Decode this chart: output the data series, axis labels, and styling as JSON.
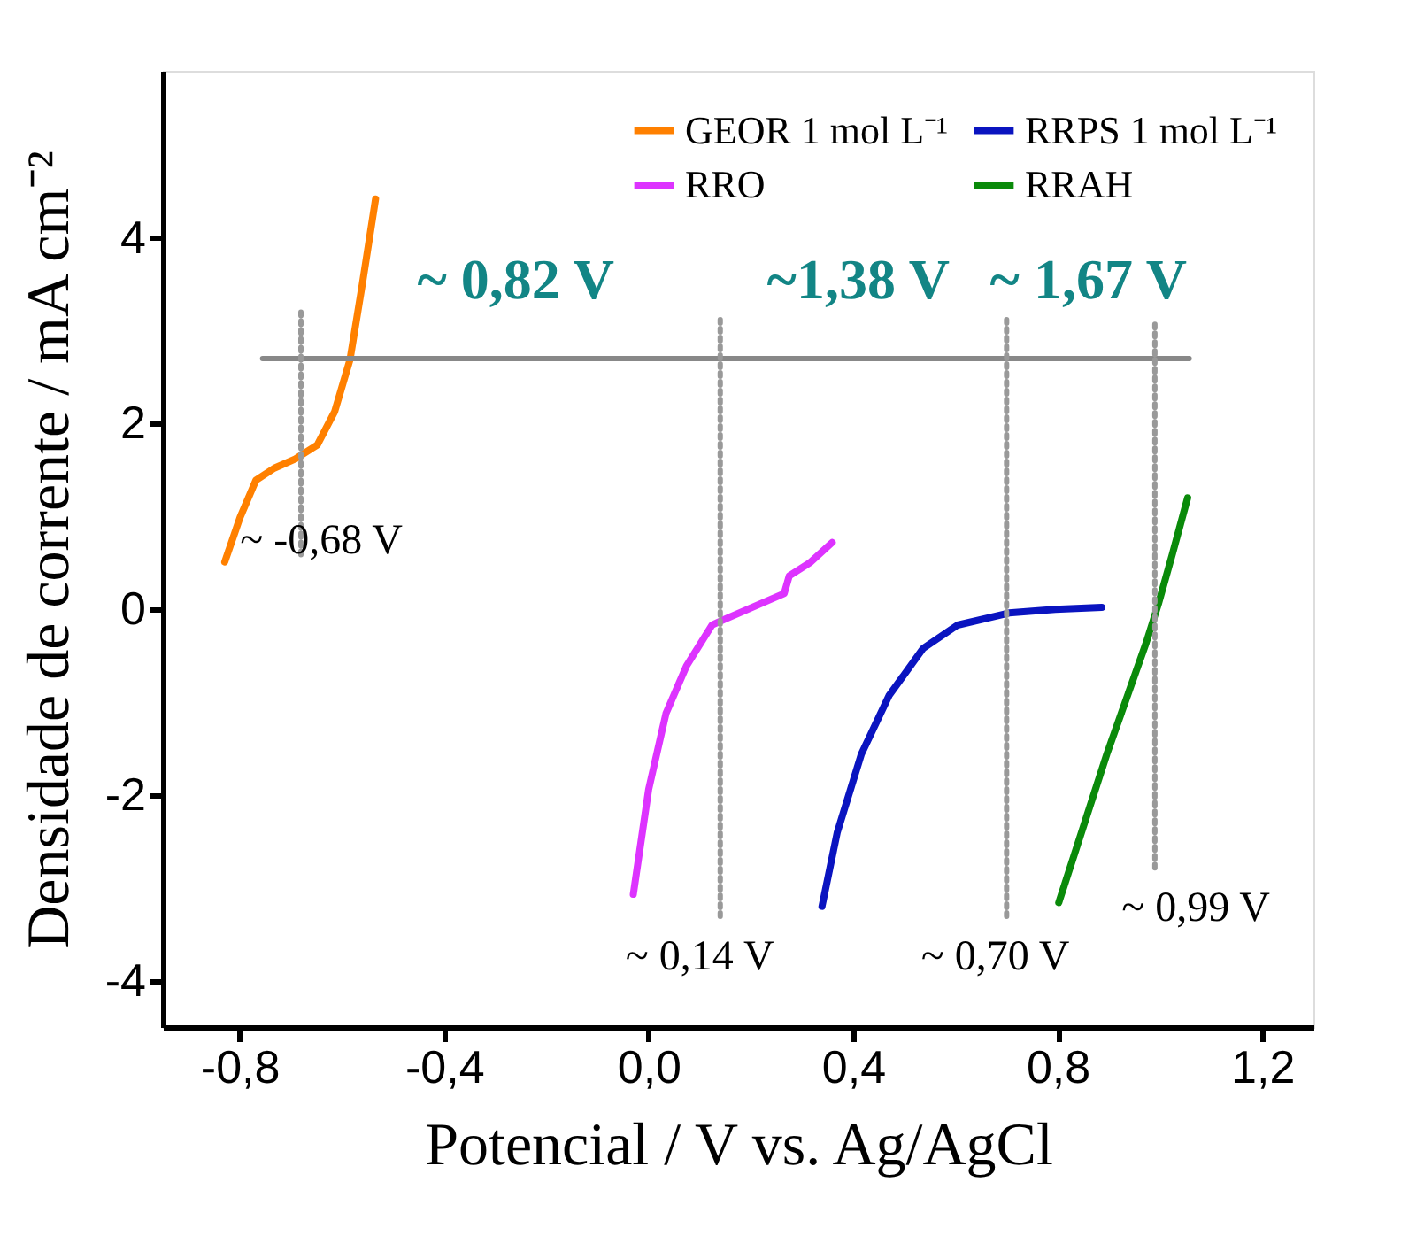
{
  "chart_data": {
    "type": "line",
    "xlabel": "Potencial / V vs. Ag/AgCl",
    "ylabel": "Densidade de corrente / mA cm⁻²",
    "xlim": [
      -0.95,
      1.3
    ],
    "xticks": [
      {
        "value": -0.8,
        "label": "-0,8"
      },
      {
        "value": -0.4,
        "label": "-0,4"
      },
      {
        "value": 0.0,
        "label": "0,0"
      },
      {
        "value": 0.4,
        "label": "0,4"
      },
      {
        "value": 0.8,
        "label": "0,8"
      },
      {
        "value": 1.2,
        "label": "1,2"
      }
    ],
    "ylim": [
      -4.5,
      5.8
    ],
    "yticks": [
      -4,
      -2,
      0,
      2,
      4
    ],
    "grid": false,
    "legend": "top right",
    "marker": "none",
    "series": [
      {
        "name": "GEOR 1 mol L⁻¹",
        "color": "#ff8000",
        "x": [
          -0.829,
          -0.799,
          -0.768,
          -0.732,
          -0.691,
          -0.648,
          -0.614,
          -0.584,
          -0.56,
          -0.534
        ],
        "values": [
          0.51,
          0.99,
          1.39,
          1.52,
          1.62,
          1.77,
          2.13,
          2.69,
          3.5,
          4.42
        ]
      },
      {
        "name": "RRO",
        "color": "#dd33ff",
        "x": [
          -0.03,
          0.0,
          0.034,
          0.074,
          0.124,
          0.148,
          0.265,
          0.275,
          0.315,
          0.359
        ],
        "values": [
          -3.07,
          -1.94,
          -1.12,
          -0.61,
          -0.17,
          -0.11,
          0.17,
          0.36,
          0.5,
          0.72
        ]
      },
      {
        "name": "RRPS 1 mol L⁻¹",
        "color": "#0a14c0",
        "x": [
          0.339,
          0.369,
          0.416,
          0.47,
          0.537,
          0.604,
          0.705,
          0.795,
          0.886
        ],
        "values": [
          -3.2,
          -2.4,
          -1.56,
          -0.93,
          -0.42,
          -0.17,
          -0.04,
          0.0,
          0.02
        ]
      },
      {
        "name": "RRAH",
        "color": "#0a8a0a",
        "x": [
          0.802,
          0.896,
          0.973,
          0.997,
          1.024,
          1.054
        ],
        "values": [
          -3.16,
          -1.56,
          -0.36,
          0.06,
          0.59,
          1.2
        ]
      },
      {
        "color": "#888888",
        "x": [
          -0.755,
          1.057
        ],
        "values": [
          2.7,
          2.7
        ]
      },
      {
        "color": "#999999",
        "line_style": "dotted",
        "x": [
          -0.68,
          -0.68
        ],
        "values": [
          3.2,
          0.55
        ]
      },
      {
        "color": "#999999",
        "line_style": "dotted",
        "x": [
          0.14,
          0.14
        ],
        "values": [
          3.12,
          -3.35
        ]
      },
      {
        "color": "#999999",
        "line_style": "dotted",
        "x": [
          0.7,
          0.7
        ],
        "values": [
          3.12,
          -3.35
        ]
      },
      {
        "color": "#999999",
        "line_style": "dotted",
        "x": [
          0.99,
          0.99
        ],
        "values": [
          3.07,
          -2.8
        ]
      }
    ],
    "annotations": [
      "~ 0,82 V",
      "~1,38 V",
      "~ 1,67 V",
      "~ -0,68 V",
      "~ 0,14 V",
      "~ 0,70 V",
      "~ 0,99 V"
    ]
  }
}
